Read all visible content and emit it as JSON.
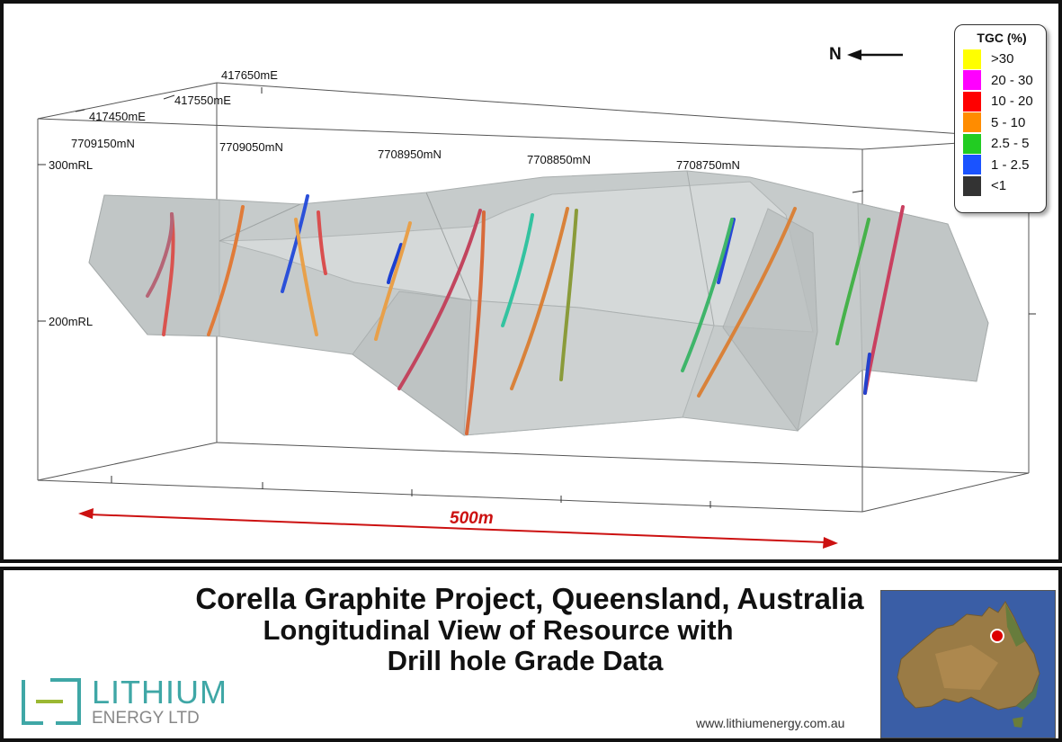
{
  "view": {
    "easting_labels": [
      "417650mE",
      "417550mE",
      "417450mE"
    ],
    "northing_labels": [
      "7709150mN",
      "7709050mN",
      "7708950mN",
      "7708850mN",
      "7708750mN"
    ],
    "elevation_labels": [
      "300mRL",
      "200mRL"
    ],
    "scale_label": "500m",
    "north_label": "N"
  },
  "legend": {
    "title": "TGC (%)",
    "items": [
      {
        "label": ">30",
        "color": "#ffff00"
      },
      {
        "label": "20 - 30",
        "color": "#ff00ff"
      },
      {
        "label": "10 - 20",
        "color": "#ff0000"
      },
      {
        "label": "5 - 10",
        "color": "#ff8c00"
      },
      {
        "label": "2.5 - 5",
        "color": "#22cc22"
      },
      {
        "label": "1 - 2.5",
        "color": "#1a53ff"
      },
      {
        "label": "<1",
        "color": "#333333"
      }
    ]
  },
  "footer": {
    "title_line1": "Corella Graphite Project, Queensland, Australia",
    "title_line2": "Longitudinal View of Resource with",
    "title_line3": "Drill hole Grade Data",
    "logo_name": "LITHIUM",
    "logo_sub": "ENERGY LTD",
    "website": "www.lithiumenergy.com.au"
  },
  "colors": {
    "scale_bar": "#cc1111",
    "logo_teal": "#3fa7a6",
    "logo_accent": "#9bb832",
    "map_ocean": "#3a5ea6",
    "map_marker": "#dd0000"
  }
}
